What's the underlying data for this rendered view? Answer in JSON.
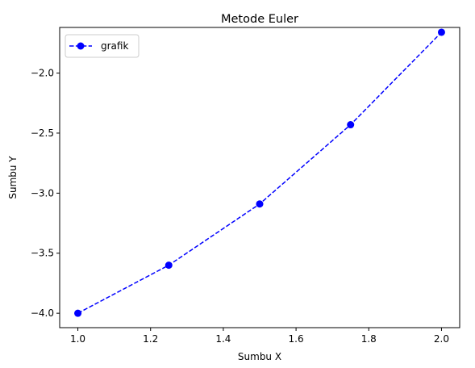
{
  "chart_data": {
    "type": "line",
    "title": "Metode Euler",
    "xlabel": "Sumbu X",
    "ylabel": "Sumbu Y",
    "xlim": [
      0.95,
      2.05
    ],
    "ylim": [
      -4.12,
      -1.62
    ],
    "x_ticks": [
      1.0,
      1.2,
      1.4,
      1.6,
      1.8,
      2.0
    ],
    "x_tick_labels": [
      "1.0",
      "1.2",
      "1.4",
      "1.6",
      "1.8",
      "2.0"
    ],
    "y_ticks": [
      -4.0,
      -3.5,
      -3.0,
      -2.5,
      -2.0
    ],
    "y_tick_labels": [
      "−4.0",
      "−3.5",
      "−3.0",
      "−2.5",
      "−2.0"
    ],
    "grid": false,
    "legend_position": "top-left",
    "series": [
      {
        "name": "grafik",
        "color": "#0000ff",
        "line_style": "dashed",
        "marker": "circle",
        "x": [
          1.0,
          1.25,
          1.5,
          1.75,
          2.0
        ],
        "y": [
          -4.0,
          -3.6,
          -3.09,
          -2.43,
          -1.66
        ]
      }
    ]
  }
}
